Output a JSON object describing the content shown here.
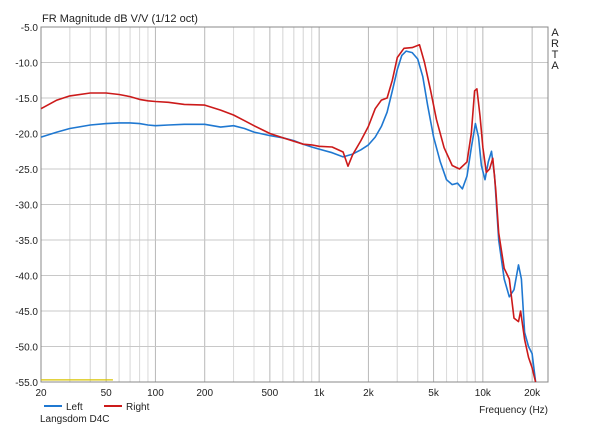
{
  "chart_data": {
    "type": "line",
    "title": "FR Magnitude dB V/V (1/12 oct)",
    "xlabel": "Frequency (Hz)",
    "ylabel": "",
    "x_scale": "log",
    "xlim": [
      20,
      25000
    ],
    "ylim": [
      -55,
      -5
    ],
    "x_ticks": [
      {
        "value": 20,
        "label": "20"
      },
      {
        "value": 50,
        "label": "50"
      },
      {
        "value": 100,
        "label": "100"
      },
      {
        "value": 200,
        "label": "200"
      },
      {
        "value": 500,
        "label": "500"
      },
      {
        "value": 1000,
        "label": "1k"
      },
      {
        "value": 2000,
        "label": "2k"
      },
      {
        "value": 5000,
        "label": "5k"
      },
      {
        "value": 10000,
        "label": "10k"
      },
      {
        "value": 20000,
        "label": "20k"
      }
    ],
    "y_ticks": [
      {
        "value": -5,
        "label": "-5.0"
      },
      {
        "value": -10,
        "label": "-10.0"
      },
      {
        "value": -15,
        "label": "-15.0"
      },
      {
        "value": -20,
        "label": "-20.0"
      },
      {
        "value": -25,
        "label": "-25.0"
      },
      {
        "value": -30,
        "label": "-30.0"
      },
      {
        "value": -35,
        "label": "-35.0"
      },
      {
        "value": -40,
        "label": "-40.0"
      },
      {
        "value": -45,
        "label": "-45.0"
      },
      {
        "value": -50,
        "label": "-50.0"
      },
      {
        "value": -55,
        "label": "-55.0"
      }
    ],
    "grid": true,
    "legend_position": "bottom-left",
    "watermark": [
      "A",
      "R",
      "T",
      "A"
    ],
    "baseline_segment": {
      "x": [
        20,
        55
      ],
      "y": -54.7,
      "color": "#d8c400"
    },
    "series": [
      {
        "name": "Left",
        "color": "#1f78d1",
        "points": [
          [
            20,
            -20.5
          ],
          [
            25,
            -19.8
          ],
          [
            30,
            -19.3
          ],
          [
            40,
            -18.8
          ],
          [
            50,
            -18.6
          ],
          [
            60,
            -18.5
          ],
          [
            70,
            -18.5
          ],
          [
            80,
            -18.6
          ],
          [
            90,
            -18.8
          ],
          [
            100,
            -18.9
          ],
          [
            120,
            -18.8
          ],
          [
            150,
            -18.7
          ],
          [
            200,
            -18.7
          ],
          [
            250,
            -19.1
          ],
          [
            300,
            -18.9
          ],
          [
            350,
            -19.3
          ],
          [
            400,
            -19.8
          ],
          [
            500,
            -20.3
          ],
          [
            600,
            -20.6
          ],
          [
            700,
            -21.0
          ],
          [
            800,
            -21.5
          ],
          [
            900,
            -21.9
          ],
          [
            1000,
            -22.2
          ],
          [
            1200,
            -22.7
          ],
          [
            1400,
            -23.3
          ],
          [
            1600,
            -22.9
          ],
          [
            1800,
            -22.3
          ],
          [
            2000,
            -21.6
          ],
          [
            2200,
            -20.5
          ],
          [
            2400,
            -19.0
          ],
          [
            2600,
            -17.0
          ],
          [
            2800,
            -14.0
          ],
          [
            3000,
            -11.0
          ],
          [
            3200,
            -9.0
          ],
          [
            3400,
            -8.4
          ],
          [
            3700,
            -8.6
          ],
          [
            4000,
            -9.5
          ],
          [
            4300,
            -12.0
          ],
          [
            4600,
            -16.0
          ],
          [
            5000,
            -20.5
          ],
          [
            5500,
            -24.0
          ],
          [
            6000,
            -26.5
          ],
          [
            6500,
            -27.2
          ],
          [
            7000,
            -27.0
          ],
          [
            7500,
            -27.8
          ],
          [
            8000,
            -26.0
          ],
          [
            8500,
            -22.0
          ],
          [
            9000,
            -18.6
          ],
          [
            9400,
            -20.5
          ],
          [
            9800,
            -24.5
          ],
          [
            10300,
            -26.5
          ],
          [
            10800,
            -24.0
          ],
          [
            11300,
            -22.5
          ],
          [
            11800,
            -26.0
          ],
          [
            12500,
            -35.0
          ],
          [
            13500,
            -40.5
          ],
          [
            14500,
            -43.0
          ],
          [
            15500,
            -42.0
          ],
          [
            16500,
            -38.5
          ],
          [
            17200,
            -40.5
          ],
          [
            18000,
            -48.0
          ],
          [
            19000,
            -50.0
          ],
          [
            20000,
            -51.0
          ],
          [
            21000,
            -55.0
          ]
        ]
      },
      {
        "name": "Right",
        "color": "#cc1a1a",
        "points": [
          [
            20,
            -16.5
          ],
          [
            25,
            -15.3
          ],
          [
            30,
            -14.7
          ],
          [
            40,
            -14.3
          ],
          [
            50,
            -14.3
          ],
          [
            60,
            -14.5
          ],
          [
            70,
            -14.8
          ],
          [
            80,
            -15.2
          ],
          [
            90,
            -15.4
          ],
          [
            100,
            -15.5
          ],
          [
            120,
            -15.6
          ],
          [
            150,
            -15.9
          ],
          [
            200,
            -16.0
          ],
          [
            250,
            -16.7
          ],
          [
            300,
            -17.4
          ],
          [
            350,
            -18.2
          ],
          [
            400,
            -18.9
          ],
          [
            500,
            -20.0
          ],
          [
            600,
            -20.6
          ],
          [
            700,
            -21.1
          ],
          [
            800,
            -21.5
          ],
          [
            900,
            -21.6
          ],
          [
            1000,
            -21.8
          ],
          [
            1200,
            -21.9
          ],
          [
            1400,
            -22.6
          ],
          [
            1500,
            -24.6
          ],
          [
            1600,
            -23.0
          ],
          [
            1800,
            -21.0
          ],
          [
            2000,
            -19.0
          ],
          [
            2200,
            -16.5
          ],
          [
            2400,
            -15.3
          ],
          [
            2600,
            -15.0
          ],
          [
            2800,
            -12.5
          ],
          [
            3000,
            -9.3
          ],
          [
            3300,
            -8.0
          ],
          [
            3700,
            -7.9
          ],
          [
            4100,
            -7.5
          ],
          [
            4400,
            -10.0
          ],
          [
            4800,
            -14.0
          ],
          [
            5200,
            -18.0
          ],
          [
            5800,
            -22.0
          ],
          [
            6500,
            -24.5
          ],
          [
            7200,
            -25.0
          ],
          [
            8000,
            -24.0
          ],
          [
            8500,
            -20.0
          ],
          [
            8900,
            -14.0
          ],
          [
            9200,
            -13.7
          ],
          [
            9600,
            -17.5
          ],
          [
            10000,
            -22.0
          ],
          [
            10500,
            -25.5
          ],
          [
            11000,
            -25.0
          ],
          [
            11500,
            -23.5
          ],
          [
            12000,
            -28.0
          ],
          [
            12500,
            -34.0
          ],
          [
            13500,
            -39.0
          ],
          [
            14500,
            -40.5
          ],
          [
            15500,
            -46.0
          ],
          [
            16500,
            -46.5
          ],
          [
            17000,
            -45.0
          ],
          [
            18000,
            -49.0
          ],
          [
            19000,
            -51.5
          ],
          [
            20000,
            -53.0
          ],
          [
            21000,
            -55.0
          ]
        ]
      }
    ]
  },
  "caption": "Langsdom D4C"
}
